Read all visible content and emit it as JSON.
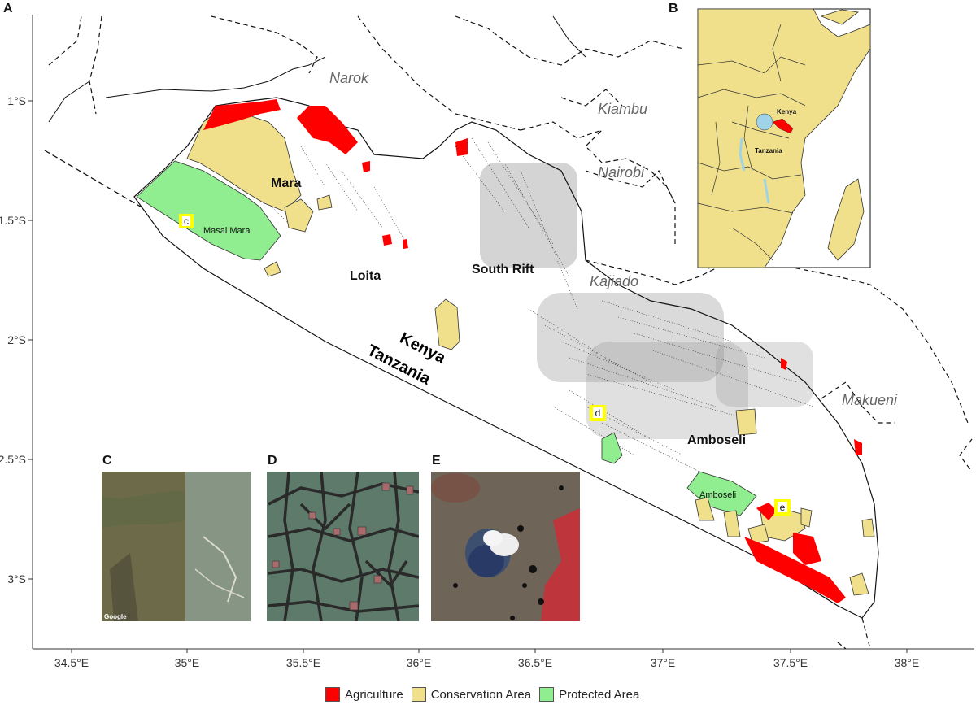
{
  "panels": {
    "main": "A",
    "locator": "B",
    "inset_c": "C",
    "inset_d": "D",
    "inset_e": "E"
  },
  "axes": {
    "y_ticks": [
      "1°S",
      "1.5°S",
      "2°S",
      "2.5°S",
      "3°S"
    ],
    "x_ticks": [
      "34.5°E",
      "35°E",
      "35.5°E",
      "36°E",
      "36.5°E",
      "37°E",
      "37.5°E",
      "38°E"
    ]
  },
  "counties": [
    "Narok",
    "Kiambu",
    "Nairobi",
    "Kajiado",
    "Makueni"
  ],
  "zones": [
    "Mara",
    "Loita",
    "South Rift",
    "Amboseli"
  ],
  "protected_areas": [
    "Masai Mara",
    "Amboseli"
  ],
  "countries": {
    "north": "Kenya",
    "south": "Tanzania"
  },
  "locator": {
    "kenya": "Kenya",
    "tanzania": "Tanzania"
  },
  "markers": [
    "c",
    "d",
    "e"
  ],
  "legend": [
    {
      "label": "Agriculture",
      "color": "#ff0000"
    },
    {
      "label": "Conservation Area",
      "color": "#f0e08c"
    },
    {
      "label": "Protected Area",
      "color": "#90ee90"
    }
  ],
  "colors": {
    "agriculture": "#ff0000",
    "conservation": "#f0e08c",
    "protected": "#90ee90",
    "marker_fill": "#ffff00",
    "lake": "#9fd4e8"
  },
  "imagery_credit": "Google"
}
